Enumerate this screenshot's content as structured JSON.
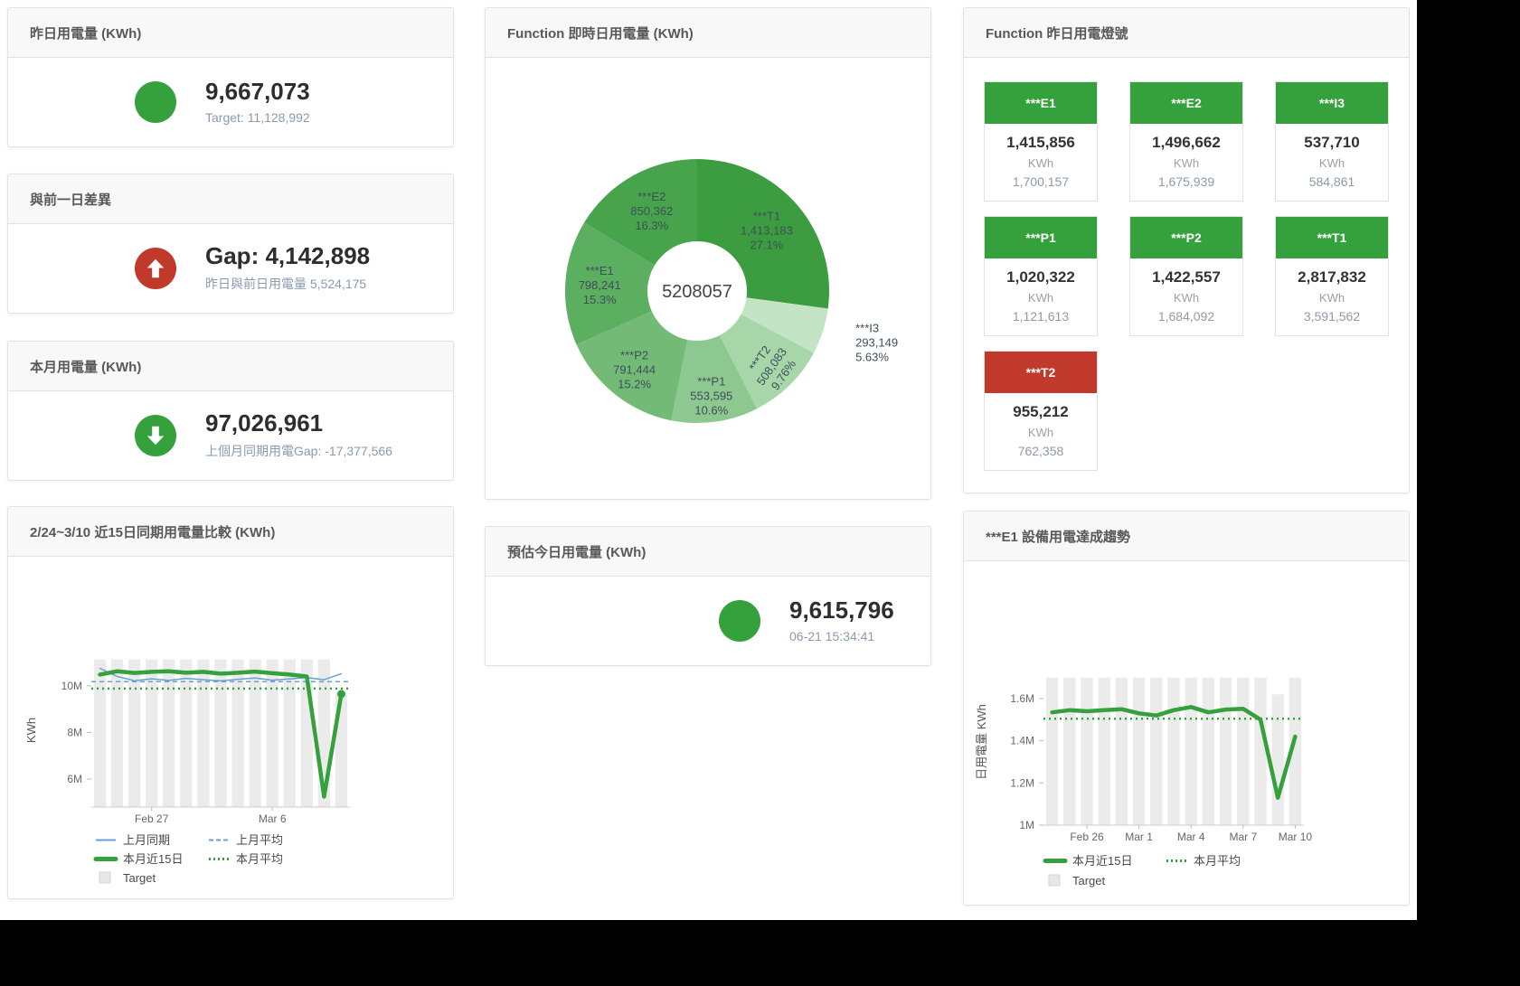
{
  "colors": {
    "green": "#34a13c",
    "red": "#c0392b",
    "subtitle": "#8a9bb0",
    "bar": "#ebebeb"
  },
  "panels": {
    "yesterday": {
      "title": "昨日用電量 (KWh)",
      "value": "9,667,073",
      "subtitle": "Target: 11,128,992"
    },
    "gap": {
      "title": "與前一日差異",
      "value": "Gap: 4,142,898",
      "subtitle": "昨日與前日用電量 5,524,175"
    },
    "month": {
      "title": "本月用電量 (KWh)",
      "value": "97,026,961",
      "subtitle": "上個月同期用電Gap: -17,377,566"
    },
    "realtime": {
      "title": "Function 即時日用電量 (KWh)",
      "center_total": "5208057"
    },
    "estimate": {
      "title": "預估今日用電量 (KWh)",
      "value": "9,615,796",
      "subtitle": "06-21 15:34:41"
    },
    "compare15": {
      "title": "2/24~3/10 近15日同期用電量比較 (KWh)"
    },
    "e1trend": {
      "title": "***E1 設備用電達成趨勢"
    },
    "lights": {
      "title": "Function 昨日用電燈號",
      "tiles": [
        {
          "label": "***E1",
          "value": "1,415,856",
          "unit": "KWh",
          "target": "1,700,157",
          "status": "green"
        },
        {
          "label": "***E2",
          "value": "1,496,662",
          "unit": "KWh",
          "target": "1,675,939",
          "status": "green"
        },
        {
          "label": "***I3",
          "value": "537,710",
          "unit": "KWh",
          "target": "584,861",
          "status": "green"
        },
        {
          "label": "***P1",
          "value": "1,020,322",
          "unit": "KWh",
          "target": "1,121,613",
          "status": "green"
        },
        {
          "label": "***P2",
          "value": "1,422,557",
          "unit": "KWh",
          "target": "1,684,092",
          "status": "green"
        },
        {
          "label": "***T1",
          "value": "2,817,832",
          "unit": "KWh",
          "target": "3,591,562",
          "status": "green"
        },
        {
          "label": "***T2",
          "value": "955,212",
          "unit": "KWh",
          "target": "762,358",
          "status": "red"
        }
      ]
    }
  },
  "chart_data": [
    {
      "id": "donut",
      "type": "pie",
      "title": "Function 即時日用電量 (KWh)",
      "center_label": "5208057",
      "slices": [
        {
          "name": "***T1",
          "value": 1413183,
          "pct": "27.1%",
          "color": "#3b9c40"
        },
        {
          "name": "***I3",
          "value": 293149,
          "pct": "5.63%",
          "color": "#c4e5c5"
        },
        {
          "name": "***T2",
          "value": 508083,
          "pct": "9.76%",
          "color": "#a7d6a9"
        },
        {
          "name": "***P1",
          "value": 553595,
          "pct": "10.6%",
          "color": "#8cc88f"
        },
        {
          "name": "***P2",
          "value": 791444,
          "pct": "15.2%",
          "color": "#72ba76"
        },
        {
          "name": "***E1",
          "value": 798241,
          "pct": "15.3%",
          "color": "#5cae61"
        },
        {
          "name": "***E2",
          "value": 850362,
          "pct": "16.3%",
          "color": "#47a44c"
        }
      ]
    },
    {
      "id": "compare15",
      "type": "line+bar",
      "title": "2/24~3/10 近15日同期用電量比較 (KWh)",
      "ylabel": "KWh",
      "ylim": [
        4800000,
        11350000
      ],
      "yticks": [
        {
          "v": 6000000,
          "label": "6M"
        },
        {
          "v": 8000000,
          "label": "8M"
        },
        {
          "v": 10000000,
          "label": "10M"
        }
      ],
      "x": [
        "2/24",
        "2/25",
        "2/26",
        "2/27",
        "2/28",
        "3/1",
        "3/2",
        "3/3",
        "3/4",
        "3/5",
        "3/6",
        "3/7",
        "3/8",
        "3/9",
        "3/10"
      ],
      "xticks": [
        {
          "i": 3,
          "label": "Feb 27"
        },
        {
          "i": 10,
          "label": "Mar 6"
        }
      ],
      "series": [
        {
          "name": "Target",
          "kind": "bar",
          "color": "#ebebeb",
          "values": [
            11128992,
            11128992,
            11128992,
            11128992,
            11128992,
            11128992,
            11128992,
            11128992,
            11128992,
            11128992,
            11128992,
            11128992,
            11128992,
            11128992,
            9700000
          ]
        },
        {
          "name": "上月同期",
          "kind": "line",
          "color": "#6c9fd3",
          "width": 1.5,
          "values": [
            10750000,
            10400000,
            10220000,
            10300000,
            10230000,
            10320000,
            10260000,
            10210000,
            10280000,
            10330000,
            10240000,
            10290000,
            10350000,
            10260000,
            10520000
          ]
        },
        {
          "name": "上月平均",
          "kind": "hline",
          "color": "#6c9fd3",
          "width": 1.5,
          "dash": "5 4",
          "value": 10180000
        },
        {
          "name": "本月近15日",
          "kind": "line",
          "color": "#34a13c",
          "width": 4.5,
          "endDot": true,
          "values": [
            10480000,
            10620000,
            10550000,
            10600000,
            10620000,
            10560000,
            10600000,
            10520000,
            10560000,
            10610000,
            10540000,
            10480000,
            10400000,
            5250000,
            9650000
          ]
        },
        {
          "name": "本月平均",
          "kind": "hline",
          "color": "#34a13c",
          "width": 2.5,
          "dash": "2 4",
          "value": 9880000
        }
      ],
      "legend": [
        {
          "label": "上月同期",
          "swatch": "line",
          "color": "#6c9fd3"
        },
        {
          "label": "上月平均",
          "swatch": "dash",
          "color": "#6c9fd3"
        },
        {
          "label": "本月近15日",
          "swatch": "thick",
          "color": "#34a13c"
        },
        {
          "label": "本月平均",
          "swatch": "dots",
          "color": "#34a13c"
        },
        {
          "label": "Target",
          "swatch": "square",
          "color": "#e7e7e7"
        }
      ]
    },
    {
      "id": "e1trend",
      "type": "line+bar",
      "title": "***E1 設備用電達成趨勢",
      "ylabel": "日用電量 KWh",
      "ylim": [
        1000000,
        1780000
      ],
      "yticks": [
        {
          "v": 1000000,
          "label": "1M"
        },
        {
          "v": 1200000,
          "label": "1.2M"
        },
        {
          "v": 1400000,
          "label": "1.4M"
        },
        {
          "v": 1600000,
          "label": "1.6M"
        }
      ],
      "x": [
        "2/24",
        "2/25",
        "2/26",
        "2/27",
        "2/28",
        "3/1",
        "3/2",
        "3/3",
        "3/4",
        "3/5",
        "3/6",
        "3/7",
        "3/8",
        "3/9",
        "3/10"
      ],
      "xticks": [
        {
          "i": 2,
          "label": "Feb 26"
        },
        {
          "i": 5,
          "label": "Mar 1"
        },
        {
          "i": 8,
          "label": "Mar 4"
        },
        {
          "i": 11,
          "label": "Mar 7"
        },
        {
          "i": 14,
          "label": "Mar 10"
        }
      ],
      "series": [
        {
          "name": "Target",
          "kind": "bar",
          "color": "#ebebeb",
          "values": [
            1700000,
            1700000,
            1700000,
            1700000,
            1700000,
            1700000,
            1700000,
            1700000,
            1700000,
            1700000,
            1700000,
            1700000,
            1700000,
            1620000,
            1700000
          ]
        },
        {
          "name": "本月近15日",
          "kind": "line",
          "color": "#34a13c",
          "width": 4.5,
          "values": [
            1535000,
            1545000,
            1540000,
            1545000,
            1550000,
            1530000,
            1520000,
            1545000,
            1560000,
            1535000,
            1548000,
            1552000,
            1500000,
            1130000,
            1420000
          ]
        },
        {
          "name": "本月平均",
          "kind": "hline",
          "color": "#34a13c",
          "width": 2.5,
          "dash": "2 4",
          "value": 1505000
        }
      ],
      "legend": [
        {
          "label": "本月近15日",
          "swatch": "thick",
          "color": "#34a13c"
        },
        {
          "label": "本月平均",
          "swatch": "dots",
          "color": "#34a13c"
        },
        {
          "label": "Target",
          "swatch": "square",
          "color": "#e7e7e7"
        }
      ]
    }
  ]
}
